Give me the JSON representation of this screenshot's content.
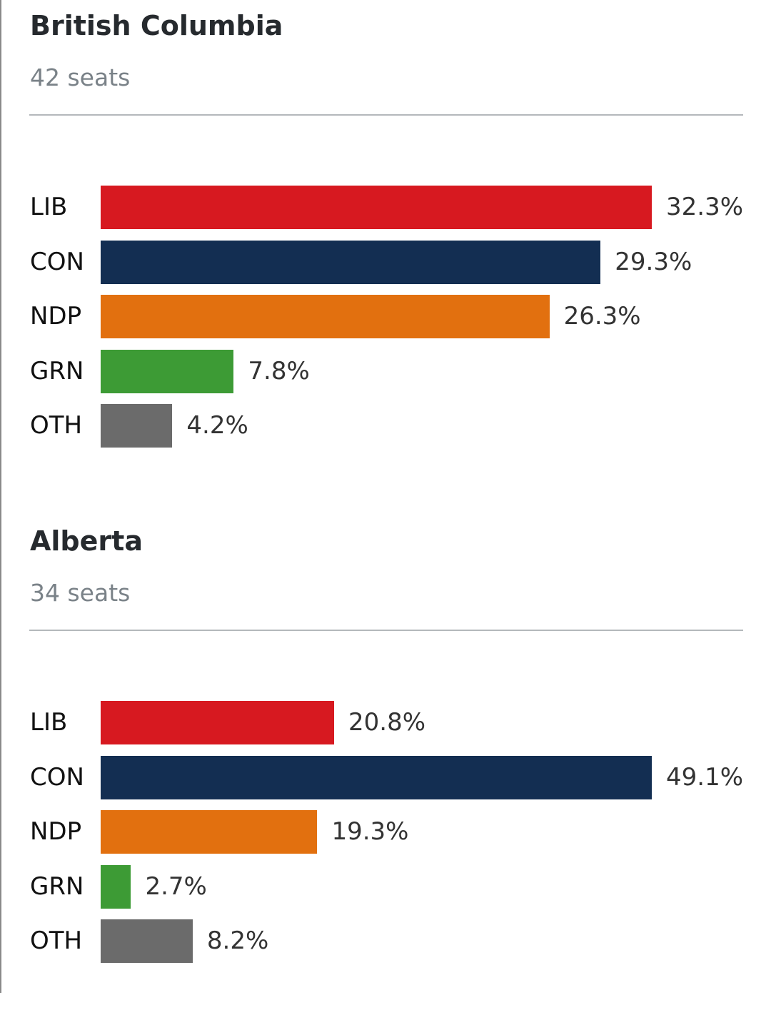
{
  "chart_data": [
    {
      "type": "bar",
      "orientation": "horizontal",
      "title": "British Columbia",
      "subtitle": "42 seats",
      "categories": [
        "LIB",
        "CON",
        "NDP",
        "GRN",
        "OTH"
      ],
      "values": [
        32.3,
        29.3,
        26.3,
        7.8,
        4.2
      ],
      "value_labels": [
        "32.3%",
        "29.3%",
        "26.3%",
        "7.8%",
        "4.2%"
      ],
      "colors": [
        "#d71920",
        "#132e52",
        "#e2700f",
        "#3d9b35",
        "#6b6b6b"
      ],
      "grid": false
    },
    {
      "type": "bar",
      "orientation": "horizontal",
      "title": "Alberta",
      "subtitle": "34 seats",
      "categories": [
        "LIB",
        "CON",
        "NDP",
        "GRN",
        "OTH"
      ],
      "values": [
        20.8,
        49.1,
        19.3,
        2.7,
        8.2
      ],
      "value_labels": [
        "20.8%",
        "49.1%",
        "19.3%",
        "2.7%",
        "8.2%"
      ],
      "colors": [
        "#d71920",
        "#132e52",
        "#e2700f",
        "#3d9b35",
        "#6b6b6b"
      ],
      "grid": false
    }
  ]
}
